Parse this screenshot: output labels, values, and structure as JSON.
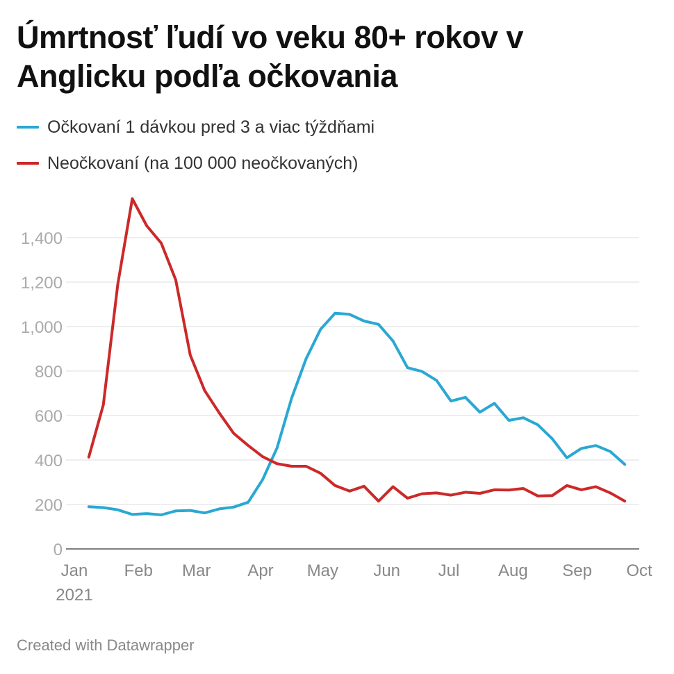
{
  "title": "Úmrtnosť ľudí vo veku 80+ rokov v Anglicku podľa očkovania",
  "footer": "Created with Datawrapper",
  "colors": {
    "vaccinated": "#2aa8d3",
    "unvaccinated": "#cc2929",
    "grid": "#dedede",
    "tick": "#aaaaaa"
  },
  "chart_data": {
    "type": "line",
    "title": "Úmrtnosť ľudí vo veku 80+ rokov v Anglicku podľa očkovania",
    "xlabel": "",
    "ylabel": "",
    "ylim": [
      0,
      1500
    ],
    "yticks": [
      0,
      200,
      400,
      600,
      800,
      1000,
      1200,
      1400
    ],
    "ytick_labels": [
      "0",
      "200",
      "400",
      "600",
      "800",
      "1,000",
      "1,200",
      "1,400"
    ],
    "xlim_days": [
      0,
      273
    ],
    "xticks": [
      {
        "day": 0,
        "label": "Jan",
        "sublabel": "2021"
      },
      {
        "day": 31,
        "label": "Feb"
      },
      {
        "day": 59,
        "label": "Mar"
      },
      {
        "day": 90,
        "label": "Apr"
      },
      {
        "day": 120,
        "label": "May"
      },
      {
        "day": 151,
        "label": "Jun"
      },
      {
        "day": 181,
        "label": "Jul"
      },
      {
        "day": 212,
        "label": "Aug"
      },
      {
        "day": 243,
        "label": "Sep"
      },
      {
        "day": 273,
        "label": "Oct"
      }
    ],
    "x_days": [
      7,
      14,
      21,
      28,
      35,
      42,
      49,
      56,
      63,
      70,
      77,
      84,
      91,
      98,
      105,
      112,
      119,
      126,
      133,
      140,
      147,
      154,
      161,
      168,
      175,
      182,
      189,
      196,
      203,
      210,
      217,
      224,
      231,
      238,
      245,
      252,
      259,
      266
    ],
    "series": [
      {
        "name": "Očkovaní 1 dávkou pred 3 a viac týždňami",
        "key": "vaccinated",
        "values": [
          190,
          186,
          176,
          155,
          159,
          153,
          171,
          173,
          162,
          180,
          188,
          210,
          312,
          455,
          678,
          855,
          988,
          1060,
          1055,
          1025,
          1010,
          935,
          815,
          798,
          758,
          665,
          682,
          615,
          655,
          578,
          590,
          558,
          495,
          410,
          452,
          465,
          438,
          380
        ]
      },
      {
        "name": "Neočkovaní (na 100 000 neočkovaných)",
        "key": "unvaccinated",
        "values": [
          413,
          648,
          1190,
          1575,
          1453,
          1375,
          1210,
          872,
          712,
          612,
          520,
          465,
          415,
          383,
          372,
          372,
          340,
          285,
          260,
          282,
          215,
          280,
          228,
          248,
          252,
          242,
          255,
          250,
          266,
          265,
          272,
          238,
          240,
          285,
          266,
          280,
          252,
          215
        ]
      }
    ]
  }
}
